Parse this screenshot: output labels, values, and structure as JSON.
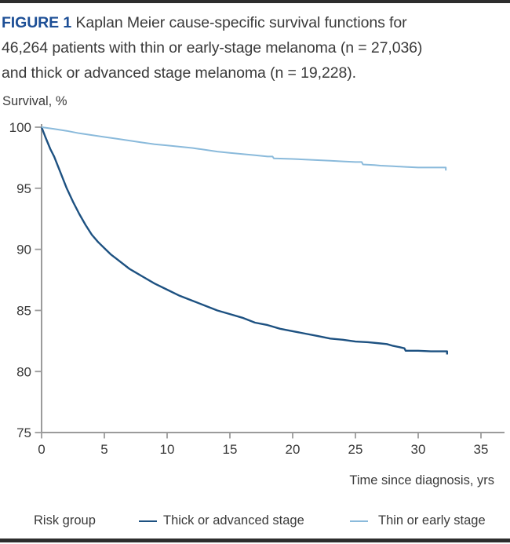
{
  "figure": {
    "label": "FIGURE 1",
    "caption_line1": "Kaplan Meier cause-specific survival functions for",
    "caption_line2": "46,264 patients with thin or early-stage melanoma (n = 27,036)",
    "caption_line3": "and thick or advanced stage melanoma (n = 19,228)."
  },
  "chart": {
    "y_axis_label": "Survival, %",
    "x_axis_label": "Time since diagnosis, yrs",
    "y_ticks": [
      100,
      95,
      90,
      85,
      80,
      75
    ],
    "x_ticks": [
      0,
      5,
      10,
      15,
      20,
      25,
      30,
      35
    ]
  },
  "legend": {
    "title": "Risk group",
    "items": [
      {
        "label": "Thick or advanced stage",
        "color": "#1d5181"
      },
      {
        "label": "Thin or early stage",
        "color": "#8abadb"
      }
    ]
  },
  "colors": {
    "rule_bar": "#2d2d2d",
    "figure_label_blue": "#1d4f96",
    "text": "#3a3a3a",
    "axis_gray": "#9b9b9b",
    "thick_curve": "#1d5181",
    "thin_curve": "#8abadb"
  },
  "chart_data": {
    "type": "line",
    "subtype": "kaplan-meier-survival",
    "title": "FIGURE 1 Kaplan Meier cause-specific survival functions for 46,264 patients with thin or early-stage melanoma (n = 27,036) and thick or advanced stage melanoma (n = 19,228).",
    "xlabel": "Time since diagnosis, yrs",
    "ylabel": "Survival, %",
    "xlim": [
      0,
      36.9
    ],
    "ylim": [
      75,
      100
    ],
    "grid": false,
    "legend_position": "bottom",
    "series": [
      {
        "name": "Thick or advanced stage",
        "color": "#1d5181",
        "n": 19228,
        "x": [
          0,
          0.3,
          0.7,
          1,
          1.5,
          2,
          2.5,
          3,
          3.5,
          4,
          4.5,
          5,
          5.5,
          6,
          7,
          7.5,
          8,
          9,
          10,
          11,
          12,
          13,
          14,
          15,
          16,
          17,
          18,
          19,
          20,
          21,
          22,
          23,
          24,
          25,
          26,
          27,
          27.5,
          28,
          28.5,
          28.9,
          29,
          30,
          31,
          32,
          32.3,
          32.3
        ],
        "y": [
          100,
          99.2,
          98.2,
          97.6,
          96.3,
          95.0,
          93.9,
          92.9,
          92.0,
          91.2,
          90.6,
          90.1,
          89.6,
          89.2,
          88.4,
          88.1,
          87.8,
          87.2,
          86.7,
          86.2,
          85.8,
          85.4,
          85.0,
          84.7,
          84.4,
          84.0,
          83.8,
          83.5,
          83.3,
          83.1,
          82.9,
          82.7,
          82.6,
          82.45,
          82.4,
          82.3,
          82.25,
          82.1,
          82.0,
          81.9,
          81.7,
          81.7,
          81.65,
          81.65,
          81.65,
          81.4
        ]
      },
      {
        "name": "Thin or early stage",
        "color": "#8abadb",
        "n": 27036,
        "x": [
          0,
          1,
          2,
          3,
          4,
          5,
          6,
          7,
          8,
          9,
          10,
          11,
          12,
          13,
          14,
          15,
          16,
          17,
          18,
          18.4,
          18.5,
          20,
          21,
          22,
          23,
          24,
          25,
          25.5,
          25.6,
          26.5,
          27,
          28,
          29,
          30,
          31,
          32,
          32.2,
          32.2
        ],
        "y": [
          100,
          99.85,
          99.7,
          99.5,
          99.35,
          99.2,
          99.05,
          98.9,
          98.75,
          98.6,
          98.5,
          98.4,
          98.3,
          98.15,
          98.0,
          97.9,
          97.8,
          97.7,
          97.6,
          97.6,
          97.45,
          97.4,
          97.35,
          97.3,
          97.25,
          97.2,
          97.15,
          97.15,
          96.95,
          96.9,
          96.85,
          96.8,
          96.75,
          96.7,
          96.7,
          96.7,
          96.7,
          96.45
        ]
      }
    ]
  }
}
